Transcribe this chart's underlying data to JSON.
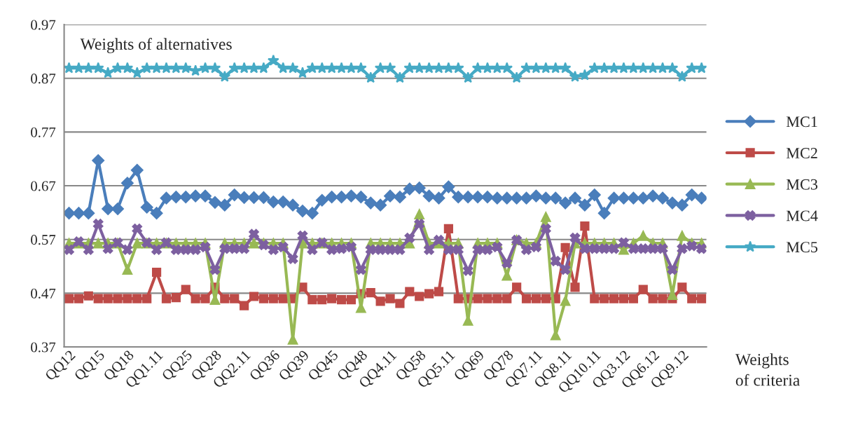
{
  "chart_data": {
    "type": "line",
    "categories": [
      "QQ12",
      null,
      null,
      "QQ15",
      null,
      null,
      "QQ18",
      null,
      null,
      "QQ1.11",
      null,
      null,
      "QQ25",
      null,
      null,
      "QQ28",
      null,
      null,
      "QQ2.11",
      null,
      null,
      "QQ36",
      null,
      null,
      "QQ39",
      null,
      null,
      "QQ45",
      null,
      null,
      "QQ48",
      null,
      null,
      "QQ4.11",
      null,
      null,
      "QQ58",
      null,
      null,
      "QQ5.11",
      null,
      null,
      "QQ69",
      null,
      null,
      "QQ78",
      null,
      null,
      "QQ7.11",
      null,
      null,
      "QQ8.11",
      null,
      null,
      "QQ10.11",
      null,
      null,
      "QQ3.12",
      null,
      null,
      "QQ6.12",
      null,
      null,
      "QQ9.12",
      null,
      null
    ],
    "series": [
      {
        "name": "MC1",
        "color": "#4a7ebb",
        "marker": "diamond",
        "values": [
          0.619,
          0.619,
          0.619,
          0.717,
          0.627,
          0.627,
          0.675,
          0.699,
          0.63,
          0.619,
          0.647,
          0.649,
          0.649,
          0.651,
          0.651,
          0.639,
          0.634,
          0.653,
          0.648,
          0.648,
          0.648,
          0.64,
          0.64,
          0.634,
          0.623,
          0.619,
          0.643,
          0.649,
          0.649,
          0.651,
          0.649,
          0.638,
          0.634,
          0.651,
          0.649,
          0.664,
          0.666,
          0.651,
          0.647,
          0.668,
          0.649,
          0.649,
          0.649,
          0.649,
          0.647,
          0.647,
          0.647,
          0.647,
          0.651,
          0.647,
          0.647,
          0.638,
          0.647,
          0.634,
          0.653,
          0.619,
          0.647,
          0.647,
          0.647,
          0.647,
          0.651,
          0.647,
          0.638,
          0.634,
          0.653,
          0.647
        ]
      },
      {
        "name": "MC2",
        "color": "#be4b48",
        "marker": "square",
        "values": [
          0.46,
          0.46,
          0.465,
          0.46,
          0.46,
          0.46,
          0.46,
          0.46,
          0.46,
          0.509,
          0.46,
          0.462,
          0.477,
          0.46,
          0.46,
          0.481,
          0.46,
          0.46,
          0.447,
          0.464,
          0.46,
          0.46,
          0.46,
          0.46,
          0.481,
          0.458,
          0.458,
          0.46,
          0.458,
          0.458,
          0.469,
          0.471,
          0.455,
          0.46,
          0.451,
          0.473,
          0.464,
          0.469,
          0.473,
          0.59,
          0.46,
          0.46,
          0.46,
          0.46,
          0.46,
          0.46,
          0.481,
          0.46,
          0.46,
          0.46,
          0.46,
          0.555,
          0.481,
          0.595,
          0.46,
          0.46,
          0.46,
          0.46,
          0.46,
          0.477,
          0.46,
          0.46,
          0.46,
          0.481,
          0.46,
          0.46
        ]
      },
      {
        "name": "MC3",
        "color": "#98b954",
        "marker": "triangle",
        "values": [
          0.563,
          0.563,
          0.563,
          0.563,
          0.563,
          0.563,
          0.514,
          0.563,
          0.563,
          0.563,
          0.563,
          0.563,
          0.563,
          0.563,
          0.563,
          0.458,
          0.563,
          0.563,
          0.563,
          0.563,
          0.563,
          0.563,
          0.563,
          0.384,
          0.563,
          0.563,
          0.563,
          0.563,
          0.563,
          0.563,
          0.443,
          0.563,
          0.563,
          0.563,
          0.563,
          0.563,
          0.617,
          0.563,
          0.563,
          0.563,
          0.563,
          0.419,
          0.563,
          0.563,
          0.563,
          0.503,
          0.569,
          0.563,
          0.563,
          0.612,
          0.392,
          0.456,
          0.563,
          0.563,
          0.563,
          0.563,
          0.563,
          0.551,
          0.563,
          0.577,
          0.563,
          0.563,
          0.467,
          0.577,
          0.563,
          0.563
        ]
      },
      {
        "name": "MC4",
        "color": "#7d60a0",
        "marker": "cross",
        "values": [
          0.551,
          0.566,
          0.551,
          0.599,
          0.553,
          0.564,
          0.551,
          0.59,
          0.564,
          0.551,
          0.564,
          0.551,
          0.551,
          0.551,
          0.556,
          0.514,
          0.553,
          0.553,
          0.553,
          0.58,
          0.56,
          0.551,
          0.556,
          0.534,
          0.577,
          0.551,
          0.564,
          0.551,
          0.553,
          0.556,
          0.514,
          0.551,
          0.551,
          0.551,
          0.551,
          0.573,
          0.599,
          0.551,
          0.569,
          0.551,
          0.551,
          0.512,
          0.551,
          0.551,
          0.556,
          0.526,
          0.569,
          0.551,
          0.556,
          0.59,
          0.53,
          0.514,
          0.573,
          0.553,
          0.553,
          0.553,
          0.553,
          0.564,
          0.553,
          0.553,
          0.553,
          0.553,
          0.514,
          0.553,
          0.558,
          0.553
        ]
      },
      {
        "name": "MC5",
        "color": "#46aac5",
        "marker": "star",
        "values": [
          0.889,
          0.889,
          0.889,
          0.889,
          0.88,
          0.889,
          0.889,
          0.88,
          0.889,
          0.889,
          0.889,
          0.889,
          0.889,
          0.884,
          0.889,
          0.889,
          0.873,
          0.889,
          0.889,
          0.889,
          0.889,
          0.903,
          0.889,
          0.889,
          0.88,
          0.889,
          0.889,
          0.889,
          0.889,
          0.889,
          0.889,
          0.871,
          0.889,
          0.889,
          0.871,
          0.889,
          0.889,
          0.889,
          0.889,
          0.889,
          0.889,
          0.871,
          0.889,
          0.889,
          0.889,
          0.889,
          0.871,
          0.889,
          0.889,
          0.889,
          0.889,
          0.889,
          0.873,
          0.876,
          0.889,
          0.889,
          0.889,
          0.889,
          0.889,
          0.889,
          0.889,
          0.889,
          0.889,
          0.873,
          0.889,
          0.889
        ]
      }
    ],
    "xlabel": "Weights\nof criteria",
    "annotations": [
      "Weights of alternatives"
    ],
    "ylim": [
      0.37,
      0.97
    ],
    "yticks": [
      0.37,
      0.47,
      0.57,
      0.67,
      0.77,
      0.87,
      0.97
    ],
    "grid": "y",
    "legend": "right",
    "line_style": "solid"
  }
}
